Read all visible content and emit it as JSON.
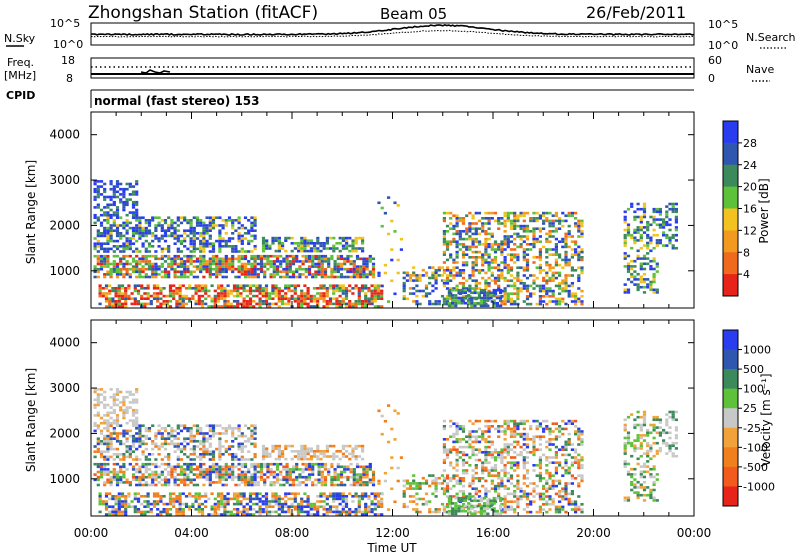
{
  "header": {
    "station": "Zhongshan Station (fitACF)",
    "beam": "Beam 05",
    "date": "26/Feb/2011"
  },
  "top_panels": {
    "nsky_label": "N.Sky",
    "nsky_ticks": [
      "10^5",
      "10^0"
    ],
    "nsearch_label": "N.Search",
    "nsearch_ticks": [
      "10^5",
      "10^0"
    ],
    "freq_label_1": "Freq.",
    "freq_label_2": "[MHz]",
    "freq_ticks": [
      "18",
      "8"
    ],
    "nave_label": "Nave",
    "nave_ticks": [
      "60",
      "0"
    ],
    "cpid_label": "CPID",
    "cpid_text": "normal (fast stereo) 153"
  },
  "colors": {
    "power_scale": [
      "#2a3cf0",
      "#2f57b0",
      "#3c8a5c",
      "#5dc23a",
      "#f2c31f",
      "#f29a20",
      "#f06a1e",
      "#e8241a"
    ],
    "velocity_scale": [
      "#2a3cf0",
      "#2f57b0",
      "#3c8a5c",
      "#5dc23a",
      "#c8c8c8",
      "#f2a23a",
      "#f07f1e",
      "#f25a1e",
      "#e8241a"
    ]
  },
  "chart_data": [
    {
      "type": "heatmap",
      "name": "power",
      "ylabel": "Slant Range [km]",
      "ylim": [
        180,
        4500
      ],
      "yticks": [
        "4000",
        "3000",
        "2000",
        "1000"
      ],
      "xlim": [
        0,
        24
      ],
      "colorbar": {
        "label": "Power [dB]",
        "ticks": [
          "28",
          "24",
          "20",
          "16",
          "12",
          "8",
          "4"
        ]
      }
    },
    {
      "type": "heatmap",
      "name": "velocity",
      "ylabel": "Slant Range [km]",
      "ylim": [
        180,
        4500
      ],
      "yticks": [
        "4000",
        "3000",
        "2000",
        "1000"
      ],
      "xlabel": "Time UT",
      "xticks": [
        "00:00",
        "04:00",
        "08:00",
        "12:00",
        "16:00",
        "20:00",
        "00:00"
      ],
      "xlim": [
        0,
        24
      ],
      "colorbar": {
        "label": "Velocity [m s⁻¹]",
        "ticks": [
          "1000",
          "500",
          "100",
          "25",
          "-25",
          "-100",
          "-500",
          "-1000"
        ]
      }
    }
  ]
}
